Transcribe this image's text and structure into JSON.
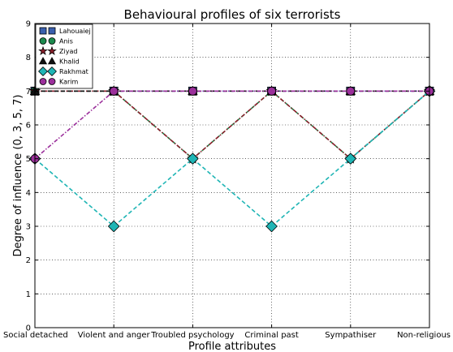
{
  "chart_data": {
    "type": "line",
    "title": "Behavioural profiles of six terrorists",
    "xlabel": "Profile attributes",
    "ylabel": "Degree of influence (0, 3, 5, 7)",
    "categories": [
      "Social detached",
      "Violent and anger",
      "Troubled psychology",
      "Criminal past",
      "Sympathiser",
      "Non-religious"
    ],
    "ylim": [
      0,
      9
    ],
    "yticks": [
      0,
      1,
      2,
      3,
      4,
      5,
      6,
      7,
      8,
      9
    ],
    "grid": "dotted",
    "legend_position": "top-left",
    "series": [
      {
        "name": "Lahouaiej",
        "values": [
          7,
          7,
          7,
          7,
          7,
          7
        ],
        "color": "#3a5fad",
        "marker": "square",
        "linestyle": "dashdot"
      },
      {
        "name": "Anis",
        "values": [
          7,
          7,
          5,
          7,
          5,
          7
        ],
        "color": "#1d8a4e",
        "marker": "circle",
        "linestyle": "dashed"
      },
      {
        "name": "Ziyad",
        "values": [
          7,
          7,
          5,
          7,
          5,
          7
        ],
        "color": "#8b1f2a",
        "marker": "star",
        "linestyle": "dashdot"
      },
      {
        "name": "Khalid",
        "values": [
          7,
          7,
          7,
          7,
          7,
          7
        ],
        "color": "#111111",
        "marker": "triangle",
        "linestyle": "dashed"
      },
      {
        "name": "Rakhmat",
        "values": [
          5,
          3,
          5,
          3,
          5,
          7
        ],
        "color": "#1fb5b5",
        "marker": "diamond",
        "linestyle": "dashed"
      },
      {
        "name": "Karim",
        "values": [
          5,
          7,
          7,
          7,
          7,
          7
        ],
        "color": "#9b2f9b",
        "marker": "circle",
        "linestyle": "dashdot"
      }
    ]
  }
}
